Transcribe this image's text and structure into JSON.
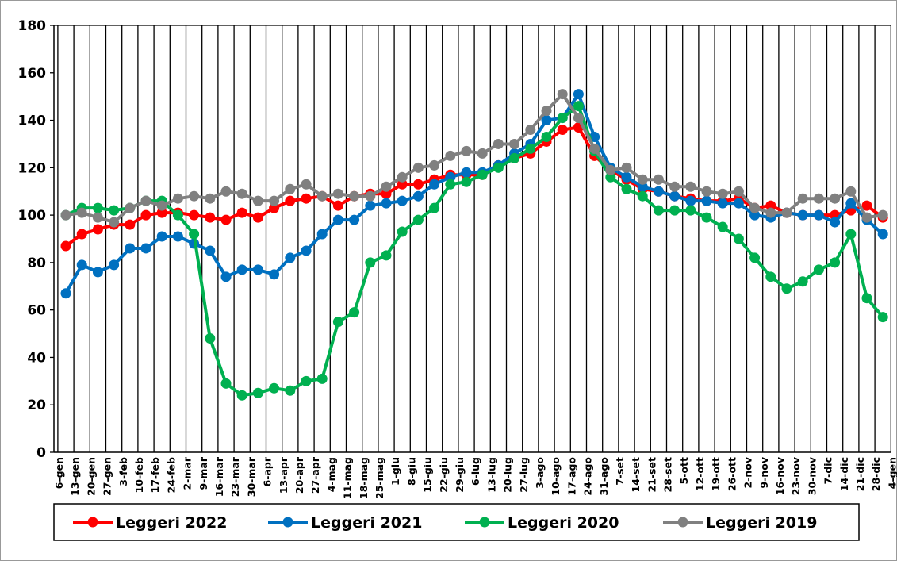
{
  "chart_data": {
    "type": "line",
    "categories": [
      "6-gen",
      "13-gen",
      "20-gen",
      "27-gen",
      "3-feb",
      "10-feb",
      "17-feb",
      "24-feb",
      "2-mar",
      "9-mar",
      "16-mar",
      "23-mar",
      "30-mar",
      "6-apr",
      "13-apr",
      "20-apr",
      "27-apr",
      "4-mag",
      "11-mag",
      "18-mag",
      "25-mag",
      "1-giu",
      "8-giu",
      "15-giu",
      "22-giu",
      "29-giu",
      "6-lug",
      "13-lug",
      "20-lug",
      "27-lug",
      "3-ago",
      "10-ago",
      "17-ago",
      "24-ago",
      "31-ago",
      "7-set",
      "14-set",
      "21-set",
      "28-set",
      "5-ott",
      "12-ott",
      "19-ott",
      "26-ott",
      "2-nov",
      "9-nov",
      "16-nov",
      "23-nov",
      "30-nov",
      "7-dic",
      "14-dic",
      "21-dic",
      "28-dic",
      "4-gen"
    ],
    "series": [
      {
        "name": "Leggeri 2022",
        "color": "#ff0000",
        "values": [
          87,
          92,
          94,
          96,
          96,
          100,
          101,
          101,
          100,
          99,
          98,
          101,
          99,
          103,
          106,
          107,
          108,
          104,
          108,
          109,
          109,
          113,
          113,
          115,
          117,
          117,
          117,
          121,
          124,
          126,
          131,
          136,
          137,
          125,
          119,
          115,
          111,
          110,
          108,
          107,
          106,
          106,
          107,
          103,
          104,
          101,
          100,
          100,
          100,
          102,
          104,
          99,
          null
        ]
      },
      {
        "name": "Leggeri 2021",
        "color": "#0070c0",
        "values": [
          67,
          79,
          76,
          79,
          86,
          86,
          91,
          91,
          88,
          85,
          74,
          77,
          77,
          75,
          82,
          85,
          92,
          98,
          98,
          104,
          105,
          106,
          108,
          113,
          116,
          118,
          118,
          121,
          126,
          130,
          140,
          141,
          151,
          133,
          120,
          116,
          112,
          110,
          108,
          106,
          106,
          105,
          105,
          100,
          99,
          101,
          100,
          100,
          97,
          105,
          98,
          92,
          null
        ]
      },
      {
        "name": "Leggeri 2020",
        "color": "#00b050",
        "values": [
          100,
          103,
          103,
          102,
          103,
          106,
          106,
          100,
          92,
          48,
          29,
          24,
          25,
          27,
          26,
          30,
          31,
          55,
          59,
          80,
          83,
          93,
          98,
          103,
          113,
          114,
          117,
          120,
          124,
          128,
          133,
          141,
          146,
          127,
          116,
          111,
          108,
          102,
          102,
          102,
          99,
          95,
          90,
          82,
          74,
          69,
          72,
          77,
          80,
          92,
          65,
          57,
          null
        ]
      },
      {
        "name": "Leggeri 2019",
        "color": "#808080",
        "values": [
          100,
          101,
          99,
          97,
          103,
          106,
          104,
          107,
          108,
          107,
          110,
          109,
          106,
          106,
          111,
          113,
          108,
          109,
          108,
          108,
          112,
          116,
          120,
          121,
          125,
          127,
          126,
          130,
          130,
          136,
          144,
          151,
          141,
          128,
          119,
          120,
          115,
          115,
          112,
          112,
          110,
          109,
          110,
          103,
          101,
          101,
          107,
          107,
          107,
          110,
          99,
          100,
          null
        ]
      }
    ],
    "ylim": [
      0,
      180
    ],
    "yticks": [
      0,
      20,
      40,
      60,
      80,
      100,
      120,
      140,
      160,
      180
    ],
    "grid": true,
    "legend": "bottom"
  }
}
